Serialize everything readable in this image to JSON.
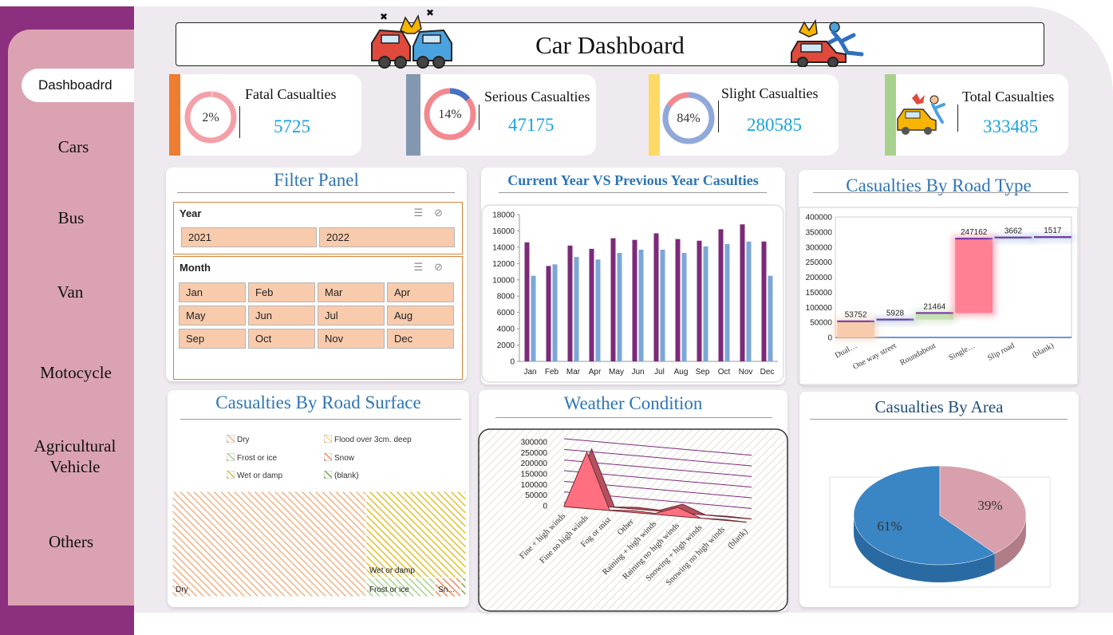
{
  "sidebar": {
    "items": [
      {
        "label": "Dashboadrd",
        "active": true
      },
      {
        "label": "Cars"
      },
      {
        "label": "Bus"
      },
      {
        "label": "Van"
      },
      {
        "label": "Motocycle"
      },
      {
        "label": "Agricultural"
      },
      {
        "label": "Vehicle"
      },
      {
        "label": "Others"
      }
    ]
  },
  "header": {
    "title": "Car Dashboard",
    "left_icon": "car-crash-icon",
    "right_icon": "pedestrian-accident-icon"
  },
  "kpis": [
    {
      "label": "Fatal Casualties",
      "value": "5725",
      "percent_label": "2%",
      "fraction": 0.02,
      "bar_color": "#ed7d31",
      "ring_color": "#f4a0a8",
      "arc_color": "#f4a0a8"
    },
    {
      "label": "Serious Casualties",
      "value": "47175",
      "percent_label": "14%",
      "fraction": 0.14,
      "bar_color": "#8497b0",
      "ring_color": "#f4888f",
      "arc_color": "#4472c4"
    },
    {
      "label": "Slight Casualties",
      "value": "280585",
      "percent_label": "84%",
      "fraction": 0.84,
      "bar_color": "#ffd966",
      "ring_color": "#f4a0a8",
      "arc_color": "#8fa9dc"
    },
    {
      "label": "Total Casualties",
      "value": "333485",
      "bar_color": "#a9d18e",
      "icon": "crash-scene-icon"
    }
  ],
  "filter_panel": {
    "title": "Filter Panel",
    "year_slicer": {
      "label": "Year",
      "options": [
        "2021",
        "2022"
      ]
    },
    "month_slicer": {
      "label": "Month",
      "options": [
        "Jan",
        "Feb",
        "Mar",
        "Apr",
        "May",
        "Jun",
        "Jul",
        "Aug",
        "Sep",
        "Oct",
        "Nov",
        "Dec"
      ]
    }
  },
  "charts": {
    "year_comparison": {
      "title": "Current Year VS Previous Year Casulties"
    },
    "road_type": {
      "title": "Casualties By Road Type"
    },
    "road_surface": {
      "title": "Casualties By Road Surface"
    },
    "weather": {
      "title": "Weather Condition"
    },
    "area": {
      "title": "Casualties By Area"
    }
  },
  "chart_data": [
    {
      "type": "bar",
      "title": "Current Year VS Previous Year Casulties",
      "categories": [
        "Jan",
        "Feb",
        "Mar",
        "Apr",
        "May",
        "Jun",
        "Jul",
        "Aug",
        "Sep",
        "Oct",
        "Nov",
        "Dec"
      ],
      "series": [
        {
          "values": [
            14600,
            11700,
            14200,
            13800,
            15100,
            14900,
            15700,
            15000,
            14800,
            16200,
            16800,
            14700
          ],
          "color": "#7b2a78"
        },
        {
          "values": [
            10500,
            11900,
            12800,
            12500,
            13300,
            13700,
            13700,
            13300,
            14100,
            14400,
            14700,
            10500
          ],
          "color": "#7ba7d7"
        }
      ],
      "ylim": [
        0,
        18000
      ],
      "yticks": [
        0,
        2000,
        4000,
        6000,
        8000,
        10000,
        12000,
        14000,
        16000,
        18000
      ],
      "grid": false
    },
    {
      "type": "bar",
      "subtype": "waterfall",
      "title": "Casualties By Road Type",
      "categories": [
        "Dual…",
        "One way street",
        "Roundabout",
        "Single…",
        "Slip road",
        "(blank)"
      ],
      "values": [
        53752,
        5928,
        21464,
        247162,
        3662,
        1517
      ],
      "value_labels": [
        "53752",
        "5928",
        "21464",
        "247162",
        "3662",
        "1517"
      ],
      "colors": [
        "#f8cbad",
        "#b4c7e7",
        "#c5e0b4",
        "#ff7f93",
        "#b4c7e7",
        "#b4c7e7"
      ],
      "ylim": [
        0,
        400000
      ],
      "yticks": [
        0,
        50000,
        100000,
        150000,
        200000,
        250000,
        300000,
        350000,
        400000
      ]
    },
    {
      "type": "heatmap",
      "subtype": "treemap",
      "title": "Casualties By Road Surface",
      "legend": [
        "Dry",
        "Flood over 3cm. deep",
        "Frost or ice",
        "Snow",
        "Wet or damp",
        "(blank)"
      ],
      "legend_colors": [
        "#f4b183",
        "#ffd966",
        "#a9d18e",
        "#f4895b",
        "#e0c030",
        "#70ad47"
      ],
      "cells": [
        {
          "label": "Dry",
          "share": 0.66,
          "color": "#f4b183"
        },
        {
          "label": "Wet or damp",
          "share": 0.27,
          "color": "#e3c84a"
        },
        {
          "label": "Frost or ice",
          "share": 0.05,
          "color": "#a9d18e"
        },
        {
          "label": "Sn...",
          "share": 0.015,
          "color": "#f4895b"
        },
        {
          "label": "",
          "share": 0.005,
          "color": "#70ad47"
        }
      ]
    },
    {
      "type": "area",
      "title": "Weather Condition",
      "categories": [
        "Fine + high winds",
        "Fine no high winds",
        "Fog or mist",
        "Other",
        "Raining + high winds",
        "Raining no high winds",
        "Snowing + high winds",
        "Snowing no high winds",
        "(blank)"
      ],
      "values": [
        4000,
        265000,
        1500,
        9000,
        5000,
        42000,
        600,
        3000,
        100
      ],
      "color": "#ff6f7f",
      "ylim": [
        0,
        300000
      ],
      "yticks": [
        0,
        50000,
        100000,
        150000,
        200000,
        250000,
        300000
      ]
    },
    {
      "type": "pie",
      "title": "Casualties By Area",
      "values": [
        61,
        39
      ],
      "labels": [
        "61%",
        "39%"
      ],
      "colors": [
        "#3a85c4",
        "#d8a0ac"
      ]
    }
  ]
}
